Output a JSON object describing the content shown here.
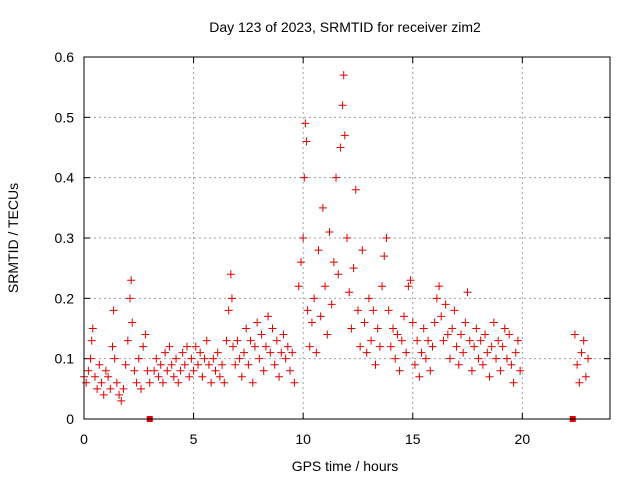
{
  "chart_data": {
    "type": "scatter",
    "title": "Day 123 of 2023, SRMTID for receiver zim2",
    "xlabel": "GPS time / hours",
    "ylabel": "SRMTID / TECUs",
    "xlim": [
      0,
      24
    ],
    "ylim": [
      0,
      0.6
    ],
    "xticks": [
      0,
      5,
      10,
      15,
      20
    ],
    "yticks": [
      0,
      0.1,
      0.2,
      0.3,
      0.4,
      0.5,
      0.6
    ],
    "xtick_labels": [
      "0",
      "5",
      "10",
      "15",
      "20"
    ],
    "ytick_labels": [
      "0",
      "0.1",
      "0.2",
      "0.3",
      "0.4",
      "0.5",
      "0.6"
    ],
    "grid": true,
    "marker": "plus",
    "color": "#e00000",
    "series": [
      {
        "name": "SRMTID",
        "points": [
          [
            0.0,
            0.07
          ],
          [
            0.1,
            0.06
          ],
          [
            0.2,
            0.08
          ],
          [
            0.3,
            0.1
          ],
          [
            0.35,
            0.13
          ],
          [
            0.4,
            0.15
          ],
          [
            0.5,
            0.07
          ],
          [
            0.6,
            0.05
          ],
          [
            0.7,
            0.09
          ],
          [
            0.8,
            0.06
          ],
          [
            0.9,
            0.04
          ],
          [
            1.0,
            0.08
          ],
          [
            1.1,
            0.07
          ],
          [
            1.2,
            0.05
          ],
          [
            1.3,
            0.12
          ],
          [
            1.35,
            0.18
          ],
          [
            1.4,
            0.1
          ],
          [
            1.5,
            0.06
          ],
          [
            1.6,
            0.04
          ],
          [
            1.7,
            0.03
          ],
          [
            1.8,
            0.05
          ],
          [
            1.9,
            0.09
          ],
          [
            2.0,
            0.13
          ],
          [
            2.1,
            0.2
          ],
          [
            2.15,
            0.23
          ],
          [
            2.2,
            0.16
          ],
          [
            2.3,
            0.08
          ],
          [
            2.4,
            0.06
          ],
          [
            2.5,
            0.1
          ],
          [
            2.6,
            0.05
          ],
          [
            2.7,
            0.12
          ],
          [
            2.8,
            0.14
          ],
          [
            2.9,
            0.08
          ],
          [
            3.0,
            0.06
          ],
          [
            3.2,
            0.08
          ],
          [
            3.3,
            0.1
          ],
          [
            3.4,
            0.07
          ],
          [
            3.5,
            0.09
          ],
          [
            3.6,
            0.06
          ],
          [
            3.7,
            0.11
          ],
          [
            3.8,
            0.08
          ],
          [
            3.9,
            0.12
          ],
          [
            4.0,
            0.09
          ],
          [
            4.1,
            0.07
          ],
          [
            4.2,
            0.1
          ],
          [
            4.3,
            0.06
          ],
          [
            4.4,
            0.08
          ],
          [
            4.5,
            0.11
          ],
          [
            4.6,
            0.09
          ],
          [
            4.7,
            0.12
          ],
          [
            4.8,
            0.07
          ],
          [
            4.9,
            0.1
          ],
          [
            5.0,
            0.08
          ],
          [
            5.1,
            0.12
          ],
          [
            5.2,
            0.09
          ],
          [
            5.3,
            0.11
          ],
          [
            5.4,
            0.07
          ],
          [
            5.5,
            0.1
          ],
          [
            5.6,
            0.13
          ],
          [
            5.7,
            0.09
          ],
          [
            5.8,
            0.06
          ],
          [
            5.9,
            0.1
          ],
          [
            6.0,
            0.08
          ],
          [
            6.1,
            0.11
          ],
          [
            6.2,
            0.07
          ],
          [
            6.3,
            0.09
          ],
          [
            6.4,
            0.06
          ],
          [
            6.5,
            0.13
          ],
          [
            6.6,
            0.18
          ],
          [
            6.7,
            0.24
          ],
          [
            6.75,
            0.2
          ],
          [
            6.8,
            0.12
          ],
          [
            6.9,
            0.09
          ],
          [
            7.0,
            0.13
          ],
          [
            7.1,
            0.1
          ],
          [
            7.2,
            0.07
          ],
          [
            7.3,
            0.11
          ],
          [
            7.4,
            0.15
          ],
          [
            7.5,
            0.09
          ],
          [
            7.6,
            0.13
          ],
          [
            7.7,
            0.06
          ],
          [
            7.8,
            0.12
          ],
          [
            7.9,
            0.16
          ],
          [
            8.0,
            0.1
          ],
          [
            8.1,
            0.14
          ],
          [
            8.2,
            0.08
          ],
          [
            8.3,
            0.12
          ],
          [
            8.4,
            0.17
          ],
          [
            8.5,
            0.11
          ],
          [
            8.6,
            0.15
          ],
          [
            8.7,
            0.09
          ],
          [
            8.8,
            0.13
          ],
          [
            8.9,
            0.07
          ],
          [
            9.0,
            0.11
          ],
          [
            9.1,
            0.14
          ],
          [
            9.2,
            0.1
          ],
          [
            9.3,
            0.12
          ],
          [
            9.4,
            0.08
          ],
          [
            9.5,
            0.11
          ],
          [
            9.6,
            0.06
          ],
          [
            9.8,
            0.22
          ],
          [
            9.9,
            0.26
          ],
          [
            10.0,
            0.3
          ],
          [
            10.05,
            0.4
          ],
          [
            10.1,
            0.49
          ],
          [
            10.15,
            0.46
          ],
          [
            10.2,
            0.18
          ],
          [
            10.3,
            0.12
          ],
          [
            10.4,
            0.16
          ],
          [
            10.5,
            0.2
          ],
          [
            10.6,
            0.11
          ],
          [
            10.7,
            0.28
          ],
          [
            10.8,
            0.17
          ],
          [
            10.9,
            0.35
          ],
          [
            11.0,
            0.22
          ],
          [
            11.1,
            0.14
          ],
          [
            11.2,
            0.31
          ],
          [
            11.3,
            0.19
          ],
          [
            11.4,
            0.26
          ],
          [
            11.5,
            0.4
          ],
          [
            11.6,
            0.24
          ],
          [
            11.7,
            0.45
          ],
          [
            11.8,
            0.52
          ],
          [
            11.85,
            0.57
          ],
          [
            11.9,
            0.47
          ],
          [
            12.0,
            0.3
          ],
          [
            12.1,
            0.21
          ],
          [
            12.2,
            0.15
          ],
          [
            12.3,
            0.25
          ],
          [
            12.4,
            0.38
          ],
          [
            12.5,
            0.18
          ],
          [
            12.6,
            0.12
          ],
          [
            12.7,
            0.28
          ],
          [
            12.8,
            0.16
          ],
          [
            12.9,
            0.11
          ],
          [
            13.0,
            0.2
          ],
          [
            13.1,
            0.13
          ],
          [
            13.2,
            0.18
          ],
          [
            13.3,
            0.09
          ],
          [
            13.4,
            0.15
          ],
          [
            13.5,
            0.12
          ],
          [
            13.6,
            0.22
          ],
          [
            13.7,
            0.27
          ],
          [
            13.8,
            0.3
          ],
          [
            13.9,
            0.18
          ],
          [
            14.0,
            0.12
          ],
          [
            14.1,
            0.15
          ],
          [
            14.2,
            0.1
          ],
          [
            14.3,
            0.14
          ],
          [
            14.4,
            0.08
          ],
          [
            14.5,
            0.13
          ],
          [
            14.6,
            0.17
          ],
          [
            14.7,
            0.11
          ],
          [
            14.8,
            0.22
          ],
          [
            14.9,
            0.23
          ],
          [
            15.0,
            0.16
          ],
          [
            15.1,
            0.09
          ],
          [
            15.2,
            0.13
          ],
          [
            15.3,
            0.07
          ],
          [
            15.4,
            0.11
          ],
          [
            15.5,
            0.15
          ],
          [
            15.6,
            0.1
          ],
          [
            15.7,
            0.13
          ],
          [
            15.8,
            0.08
          ],
          [
            15.9,
            0.12
          ],
          [
            16.0,
            0.16
          ],
          [
            16.1,
            0.2
          ],
          [
            16.2,
            0.22
          ],
          [
            16.3,
            0.17
          ],
          [
            16.4,
            0.13
          ],
          [
            16.5,
            0.19
          ],
          [
            16.6,
            0.14
          ],
          [
            16.7,
            0.1
          ],
          [
            16.8,
            0.15
          ],
          [
            16.9,
            0.18
          ],
          [
            17.0,
            0.12
          ],
          [
            17.1,
            0.09
          ],
          [
            17.2,
            0.14
          ],
          [
            17.3,
            0.11
          ],
          [
            17.4,
            0.16
          ],
          [
            17.5,
            0.21
          ],
          [
            17.6,
            0.13
          ],
          [
            17.7,
            0.08
          ],
          [
            17.8,
            0.12
          ],
          [
            17.9,
            0.15
          ],
          [
            18.0,
            0.1
          ],
          [
            18.1,
            0.13
          ],
          [
            18.2,
            0.09
          ],
          [
            18.3,
            0.14
          ],
          [
            18.4,
            0.11
          ],
          [
            18.5,
            0.07
          ],
          [
            18.6,
            0.12
          ],
          [
            18.7,
            0.16
          ],
          [
            18.8,
            0.1
          ],
          [
            18.9,
            0.13
          ],
          [
            19.0,
            0.08
          ],
          [
            19.1,
            0.12
          ],
          [
            19.2,
            0.15
          ],
          [
            19.3,
            0.1
          ],
          [
            19.4,
            0.14
          ],
          [
            19.5,
            0.09
          ],
          [
            19.6,
            0.06
          ],
          [
            19.7,
            0.11
          ],
          [
            19.8,
            0.13
          ],
          [
            19.9,
            0.08
          ],
          [
            22.4,
            0.14
          ],
          [
            22.5,
            0.09
          ],
          [
            22.6,
            0.06
          ],
          [
            22.7,
            0.11
          ],
          [
            22.8,
            0.13
          ],
          [
            22.9,
            0.07
          ],
          [
            23.0,
            0.1
          ]
        ]
      },
      {
        "name": "no-data markers",
        "marker": "square",
        "points": [
          [
            3.0,
            0.0
          ],
          [
            22.3,
            0.0
          ]
        ]
      }
    ]
  }
}
